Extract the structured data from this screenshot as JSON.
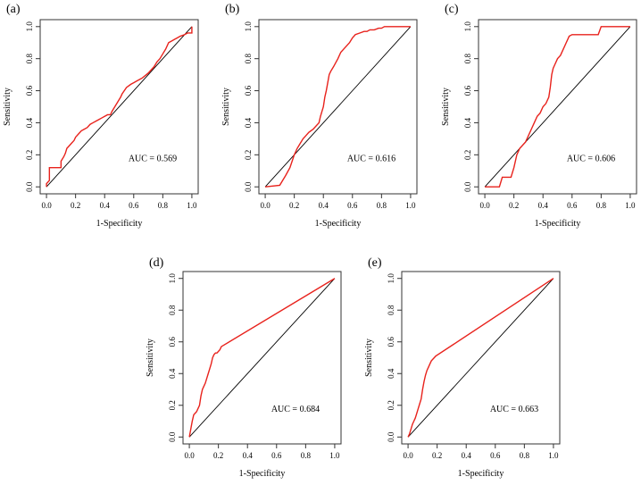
{
  "chart_data": [
    {
      "type": "line",
      "panel_label": "(a)",
      "xlabel": "1-Specificity",
      "ylabel": "Sensitivity",
      "auc_label": "AUC = 0.569",
      "xlim": [
        0,
        1
      ],
      "ylim": [
        0,
        1
      ],
      "xticks": [
        "0.0",
        "0.2",
        "0.4",
        "0.6",
        "0.8",
        "1.0"
      ],
      "yticks": [
        "0.0",
        "0.2",
        "0.4",
        "0.6",
        "0.8",
        "1.0"
      ],
      "series": [
        {
          "name": "ROC",
          "color": "#e8221c",
          "x": [
            0,
            0,
            0.02,
            0.02,
            0.1,
            0.1,
            0.12,
            0.13,
            0.14,
            0.15,
            0.17,
            0.19,
            0.2,
            0.22,
            0.24,
            0.26,
            0.28,
            0.3,
            0.32,
            0.34,
            0.36,
            0.38,
            0.4,
            0.42,
            0.44,
            0.45,
            0.47,
            0.49,
            0.51,
            0.52,
            0.55,
            0.58,
            0.6,
            0.62,
            0.64,
            0.66,
            0.7,
            0.72,
            0.74,
            0.76,
            0.78,
            0.8,
            0.82,
            0.84,
            0.86,
            0.88,
            0.9,
            0.92,
            0.95,
            0.97,
            1,
            1
          ],
          "y": [
            0,
            0.02,
            0.04,
            0.12,
            0.12,
            0.16,
            0.19,
            0.21,
            0.24,
            0.25,
            0.27,
            0.29,
            0.31,
            0.33,
            0.35,
            0.36,
            0.37,
            0.39,
            0.4,
            0.41,
            0.42,
            0.43,
            0.44,
            0.45,
            0.45,
            0.47,
            0.5,
            0.53,
            0.56,
            0.58,
            0.62,
            0.64,
            0.65,
            0.66,
            0.67,
            0.68,
            0.71,
            0.73,
            0.75,
            0.78,
            0.8,
            0.83,
            0.86,
            0.9,
            0.91,
            0.92,
            0.93,
            0.94,
            0.95,
            0.96,
            0.96,
            1
          ]
        }
      ],
      "reference_line": {
        "x": [
          0,
          1
        ],
        "y": [
          0,
          1
        ],
        "color": "#000000"
      }
    },
    {
      "type": "line",
      "panel_label": "(b)",
      "xlabel": "1-Specificity",
      "ylabel": "Sensitivity",
      "auc_label": "AUC = 0.616",
      "xlim": [
        0,
        1
      ],
      "ylim": [
        0,
        1
      ],
      "xticks": [
        "0.0",
        "0.2",
        "0.4",
        "0.6",
        "0.8",
        "1.0"
      ],
      "yticks": [
        "0.0",
        "0.2",
        "0.4",
        "0.6",
        "0.8",
        "1.0"
      ],
      "series": [
        {
          "name": "ROC",
          "color": "#e8221c",
          "x": [
            0,
            0.1,
            0.12,
            0.14,
            0.17,
            0.2,
            0.22,
            0.24,
            0.26,
            0.28,
            0.3,
            0.33,
            0.35,
            0.37,
            0.38,
            0.4,
            0.41,
            0.42,
            0.43,
            0.44,
            0.45,
            0.47,
            0.5,
            0.52,
            0.54,
            0.56,
            0.58,
            0.6,
            0.62,
            0.65,
            0.68,
            0.7,
            0.72,
            0.75,
            0.78,
            0.8,
            0.82,
            0.85,
            0.88,
            0.9,
            1
          ],
          "y": [
            0,
            0.01,
            0.04,
            0.07,
            0.12,
            0.2,
            0.24,
            0.27,
            0.3,
            0.32,
            0.34,
            0.36,
            0.38,
            0.4,
            0.44,
            0.5,
            0.56,
            0.6,
            0.65,
            0.7,
            0.72,
            0.75,
            0.8,
            0.84,
            0.86,
            0.88,
            0.9,
            0.93,
            0.95,
            0.96,
            0.97,
            0.97,
            0.98,
            0.98,
            0.99,
            0.99,
            1,
            1,
            1,
            1,
            1
          ]
        }
      ],
      "reference_line": {
        "x": [
          0,
          1
        ],
        "y": [
          0,
          1
        ],
        "color": "#000000"
      }
    },
    {
      "type": "line",
      "panel_label": "(c)",
      "xlabel": "1-Specificity",
      "ylabel": "Sensitivity",
      "auc_label": "AUC = 0.606",
      "xlim": [
        0,
        1
      ],
      "ylim": [
        0,
        1
      ],
      "xticks": [
        "0.0",
        "0.2",
        "0.4",
        "0.6",
        "0.8",
        "1.0"
      ],
      "yticks": [
        "0.0",
        "0.2",
        "0.4",
        "0.6",
        "0.8",
        "1.0"
      ],
      "series": [
        {
          "name": "ROC",
          "color": "#e8221c",
          "x": [
            0,
            0.1,
            0.12,
            0.18,
            0.2,
            0.22,
            0.24,
            0.28,
            0.3,
            0.32,
            0.34,
            0.36,
            0.38,
            0.4,
            0.42,
            0.44,
            0.45,
            0.46,
            0.47,
            0.48,
            0.5,
            0.52,
            0.54,
            0.56,
            0.58,
            0.6,
            0.7,
            0.78,
            0.8,
            1
          ],
          "y": [
            0,
            0,
            0.06,
            0.06,
            0.12,
            0.2,
            0.24,
            0.28,
            0.32,
            0.36,
            0.4,
            0.44,
            0.46,
            0.5,
            0.52,
            0.56,
            0.62,
            0.7,
            0.74,
            0.76,
            0.8,
            0.82,
            0.86,
            0.9,
            0.94,
            0.95,
            0.95,
            0.95,
            1,
            1
          ]
        }
      ],
      "reference_line": {
        "x": [
          0,
          1
        ],
        "y": [
          0,
          1
        ],
        "color": "#000000"
      }
    },
    {
      "type": "line",
      "panel_label": "(d)",
      "xlabel": "1-Specificity",
      "ylabel": "Sensitivity",
      "auc_label": "AUC = 0.684",
      "xlim": [
        0,
        1
      ],
      "ylim": [
        0,
        1
      ],
      "xticks": [
        "0.0",
        "0.2",
        "0.4",
        "0.6",
        "0.8",
        "1.0"
      ],
      "yticks": [
        "0.0",
        "0.2",
        "0.4",
        "0.6",
        "0.8",
        "1.0"
      ],
      "series": [
        {
          "name": "ROC",
          "color": "#e8221c",
          "x": [
            0,
            0.01,
            0.02,
            0.03,
            0.04,
            0.05,
            0.06,
            0.07,
            0.08,
            0.09,
            0.1,
            0.11,
            0.12,
            0.13,
            0.14,
            0.15,
            0.16,
            0.17,
            0.18,
            0.19,
            0.2,
            0.21,
            0.22,
            1
          ],
          "y": [
            0,
            0.05,
            0.1,
            0.14,
            0.15,
            0.16,
            0.18,
            0.2,
            0.26,
            0.3,
            0.32,
            0.34,
            0.37,
            0.4,
            0.43,
            0.46,
            0.5,
            0.52,
            0.53,
            0.53,
            0.54,
            0.55,
            0.57,
            1
          ]
        }
      ],
      "reference_line": {
        "x": [
          0,
          1
        ],
        "y": [
          0,
          1
        ],
        "color": "#000000"
      }
    },
    {
      "type": "line",
      "panel_label": "(e)",
      "xlabel": "1-Specificity",
      "ylabel": "Sensitivity",
      "auc_label": "AUC = 0.663",
      "xlim": [
        0,
        1
      ],
      "ylim": [
        0,
        1
      ],
      "xticks": [
        "0.0",
        "0.2",
        "0.4",
        "0.6",
        "0.8",
        "1.0"
      ],
      "yticks": [
        "0.0",
        "0.2",
        "0.4",
        "0.6",
        "0.8",
        "1.0"
      ],
      "series": [
        {
          "name": "ROC",
          "color": "#e8221c",
          "x": [
            0,
            0.01,
            0.02,
            0.03,
            0.04,
            0.05,
            0.06,
            0.07,
            0.08,
            0.09,
            0.1,
            0.11,
            0.12,
            0.13,
            0.14,
            0.15,
            0.16,
            0.17,
            0.18,
            0.19,
            1
          ],
          "y": [
            0,
            0.02,
            0.05,
            0.08,
            0.1,
            0.12,
            0.15,
            0.18,
            0.21,
            0.24,
            0.3,
            0.35,
            0.39,
            0.42,
            0.44,
            0.46,
            0.48,
            0.49,
            0.5,
            0.51,
            1
          ]
        }
      ],
      "reference_line": {
        "x": [
          0,
          1
        ],
        "y": [
          0,
          1
        ],
        "color": "#000000"
      }
    }
  ]
}
